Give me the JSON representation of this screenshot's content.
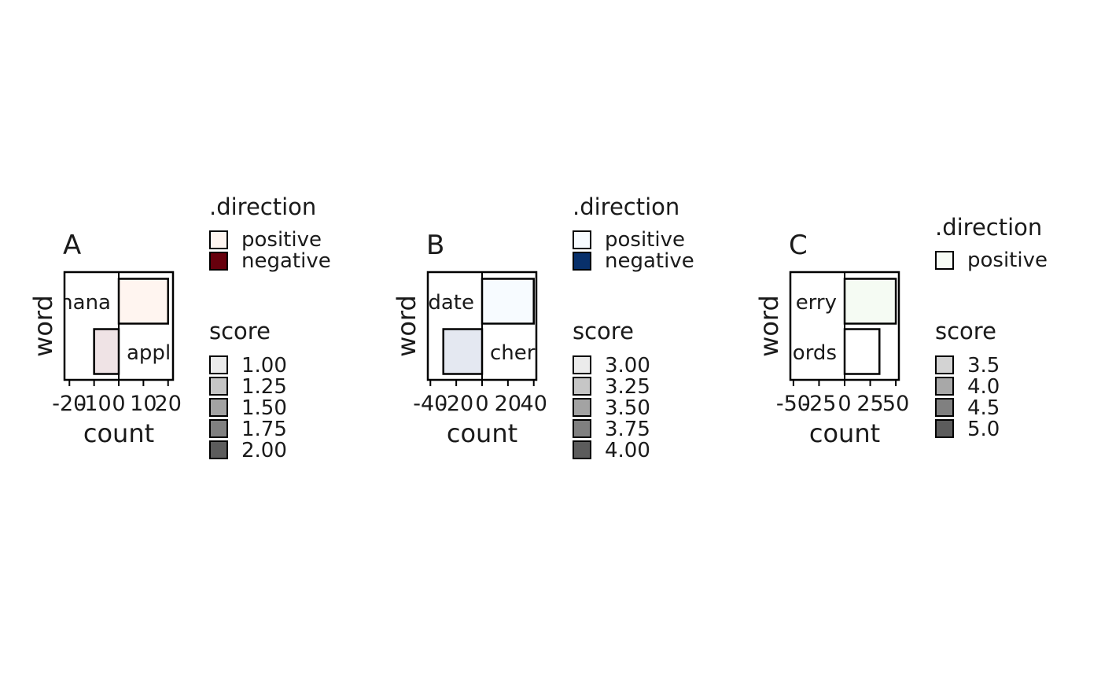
{
  "chart_data": [
    {
      "type": "bar",
      "panel_label": "A",
      "xlabel": "count",
      "ylabel": "word",
      "xlim": [
        -22,
        22
      ],
      "xticks": [
        -20,
        -10,
        0,
        10,
        20
      ],
      "xtick_labels": [
        "-20",
        "-10",
        "0",
        "10",
        "20"
      ],
      "bars": [
        {
          "word": "banana",
          "shown_label": "nana",
          "value": 20,
          "score": 1.0,
          "fill": "#fff5f0"
        },
        {
          "word": "apple",
          "shown_label": "appl",
          "value": -10,
          "score": 2.0,
          "fill": "#efe3e5"
        }
      ],
      "legend_direction": {
        "title": ".direction",
        "items": [
          {
            "label": "positive",
            "color": "#fff5f0"
          },
          {
            "label": "negative",
            "color": "#67000d"
          }
        ]
      },
      "legend_score": {
        "title": "score",
        "items": [
          {
            "label": "1.00",
            "color": "#ebebeb"
          },
          {
            "label": "1.25",
            "color": "#c6c6c6"
          },
          {
            "label": "1.50",
            "color": "#a3a3a3"
          },
          {
            "label": "1.75",
            "color": "#808080"
          },
          {
            "label": "2.00",
            "color": "#5c5c5c"
          }
        ]
      }
    },
    {
      "type": "bar",
      "panel_label": "B",
      "xlabel": "count",
      "ylabel": "word",
      "xlim": [
        -42,
        42
      ],
      "xticks": [
        -40,
        -20,
        0,
        20,
        40
      ],
      "xtick_labels": [
        "-40",
        "-20",
        "0",
        "20",
        "40"
      ],
      "bars": [
        {
          "word": "date",
          "shown_label": "date",
          "value": 40,
          "score": 3.0,
          "fill": "#f7fbff"
        },
        {
          "word": "cherry",
          "shown_label": "cher",
          "value": -30,
          "score": 4.0,
          "fill": "#e4e8f1"
        }
      ],
      "legend_direction": {
        "title": ".direction",
        "items": [
          {
            "label": "positive",
            "color": "#f7fbff"
          },
          {
            "label": "negative",
            "color": "#08306b"
          }
        ]
      },
      "legend_score": {
        "title": "score",
        "items": [
          {
            "label": "3.00",
            "color": "#ebebeb"
          },
          {
            "label": "3.25",
            "color": "#c6c6c6"
          },
          {
            "label": "3.50",
            "color": "#a3a3a3"
          },
          {
            "label": "3.75",
            "color": "#808080"
          },
          {
            "label": "4.00",
            "color": "#5c5c5c"
          }
        ]
      }
    },
    {
      "type": "bar",
      "panel_label": "C",
      "xlabel": "count",
      "ylabel": "word",
      "xlim": [
        -53,
        53
      ],
      "xticks": [
        -50,
        -25,
        0,
        25,
        50
      ],
      "xtick_labels": [
        "-50",
        "-25",
        "0",
        "25",
        "50"
      ],
      "bars": [
        {
          "word": "elderberry",
          "shown_label": "erry",
          "value": 50,
          "score": 3.5,
          "fill": "#f5fbf3"
        },
        {
          "word": "fjords",
          "shown_label": "ords",
          "value": 34,
          "score": 5.0,
          "fill": "#ffffff"
        }
      ],
      "legend_direction": {
        "title": ".direction",
        "items": [
          {
            "label": "positive",
            "color": "#f7fcf5"
          }
        ]
      },
      "legend_score": {
        "title": "score",
        "items": [
          {
            "label": "3.5",
            "color": "#d3d3d3"
          },
          {
            "label": "4.0",
            "color": "#a8a8a8"
          },
          {
            "label": "4.5",
            "color": "#808080"
          },
          {
            "label": "5.0",
            "color": "#5c5c5c"
          }
        ]
      }
    }
  ]
}
